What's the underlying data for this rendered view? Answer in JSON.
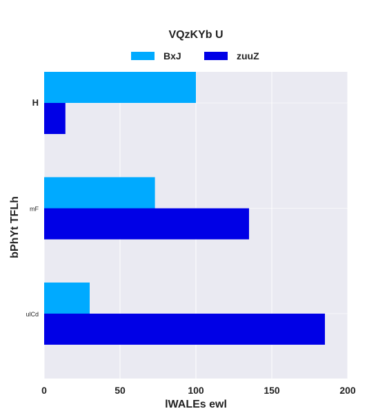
{
  "chart_data": {
    "type": "bar",
    "orientation": "horizontal",
    "title": "VQzKYb U",
    "xlabel": "lWALEs ewl",
    "ylabel": "bPhYt TFLh",
    "categories": [
      "H",
      "mF",
      "ulCd"
    ],
    "series": [
      {
        "name": "BxJ",
        "color": "#00aaff",
        "values": [
          100,
          73,
          30
        ]
      },
      {
        "name": "zuuZ",
        "color": "#0000e6",
        "values": [
          14,
          135,
          185
        ]
      }
    ],
    "xlim": [
      0,
      200
    ],
    "xticks": [
      0,
      50,
      100,
      150,
      200
    ],
    "grid": true,
    "legend_position": "top",
    "plot_background": "#eaeaf2"
  }
}
